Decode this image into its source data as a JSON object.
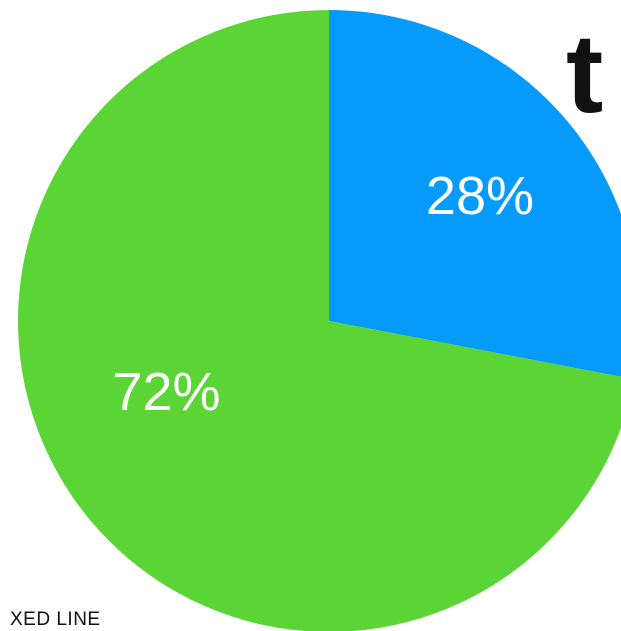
{
  "heading_fragment": "t",
  "footer_fragment": "XED LINE",
  "chart_data": {
    "type": "pie",
    "slices": [
      {
        "label": "28%",
        "value": 28,
        "color": "#069bfb"
      },
      {
        "label": "72%",
        "value": 72,
        "color": "#5bd536"
      }
    ],
    "start": "12 o'clock",
    "direction": "clockwise",
    "legend": "none"
  }
}
